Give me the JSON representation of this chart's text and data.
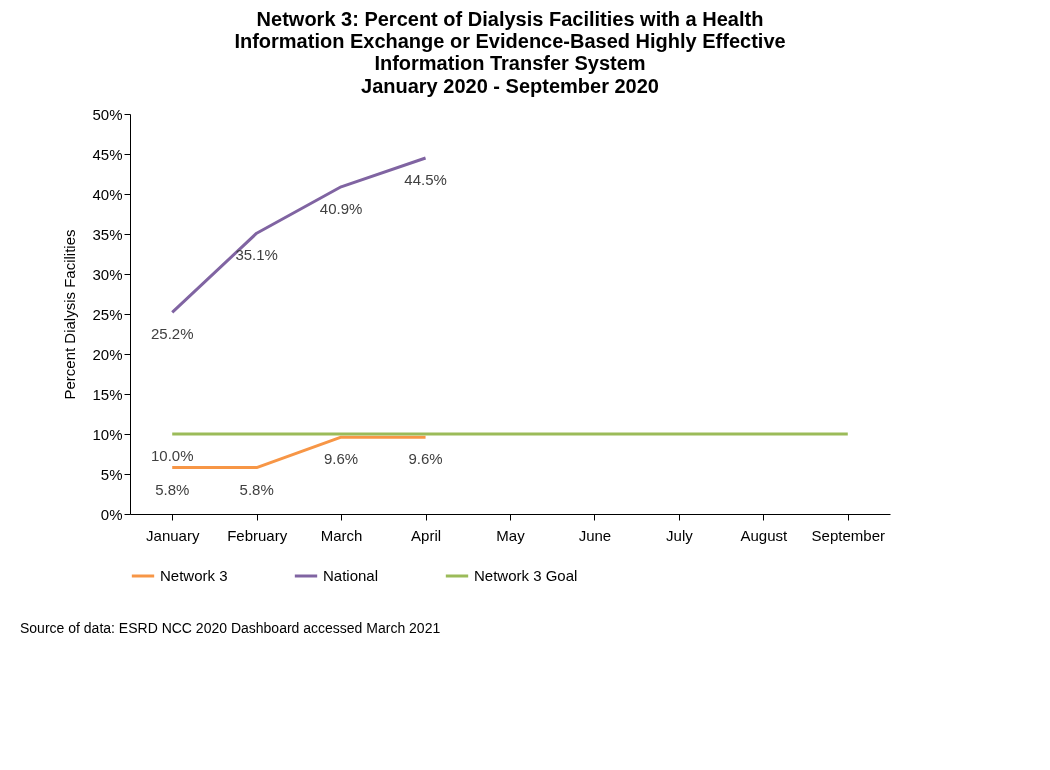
{
  "chart_data": {
    "type": "line",
    "title": "Network 3: Percent of Dialysis Facilities with a Health Information Exchange or Evidence-Based Highly Effective Information Transfer System",
    "subtitle": "January 2020 - September 2020",
    "ylabel": "Percent Dialysis Facilities",
    "categories": [
      "January",
      "February",
      "March",
      "April",
      "May",
      "June",
      "July",
      "August",
      "September"
    ],
    "series": [
      {
        "name": "Network 3",
        "color": "#f79646",
        "values": [
          5.8,
          5.8,
          9.6,
          9.6,
          null,
          null,
          null,
          null,
          null
        ],
        "value_labels": [
          "5.8%",
          "5.8%",
          "9.6%",
          "9.6%",
          null,
          null,
          null,
          null,
          null
        ]
      },
      {
        "name": "National",
        "color": "#8064a2",
        "values": [
          25.2,
          35.1,
          40.9,
          44.5,
          null,
          null,
          null,
          null,
          null
        ],
        "value_labels": [
          "25.2%",
          "35.1%",
          "40.9%",
          "44.5%",
          null,
          null,
          null,
          null,
          null
        ]
      },
      {
        "name": "Network 3 Goal",
        "color": "#9bbb59",
        "values": [
          10.0,
          10.0,
          10.0,
          10.0,
          10.0,
          10.0,
          10.0,
          10.0,
          10.0
        ],
        "value_labels": [
          "10.0%",
          null,
          null,
          null,
          null,
          null,
          null,
          null,
          null
        ]
      }
    ],
    "ylim": [
      0,
      50
    ],
    "yticks": [
      {
        "value": 0,
        "label": "0%"
      },
      {
        "value": 5,
        "label": "5%"
      },
      {
        "value": 10,
        "label": "10%"
      },
      {
        "value": 15,
        "label": "15%"
      },
      {
        "value": 20,
        "label": "20%"
      },
      {
        "value": 25,
        "label": "25%"
      },
      {
        "value": 30,
        "label": "30%"
      },
      {
        "value": 35,
        "label": "35%"
      },
      {
        "value": 40,
        "label": "40%"
      },
      {
        "value": 45,
        "label": "45%"
      },
      {
        "value": 50,
        "label": "50%"
      }
    ],
    "grid": false,
    "legend": "bottom",
    "marker": "none",
    "line_style": "solid",
    "annotations": [
      "Source of data:  ESRD NCC 2020 Dashboard accessed March 2021"
    ]
  }
}
